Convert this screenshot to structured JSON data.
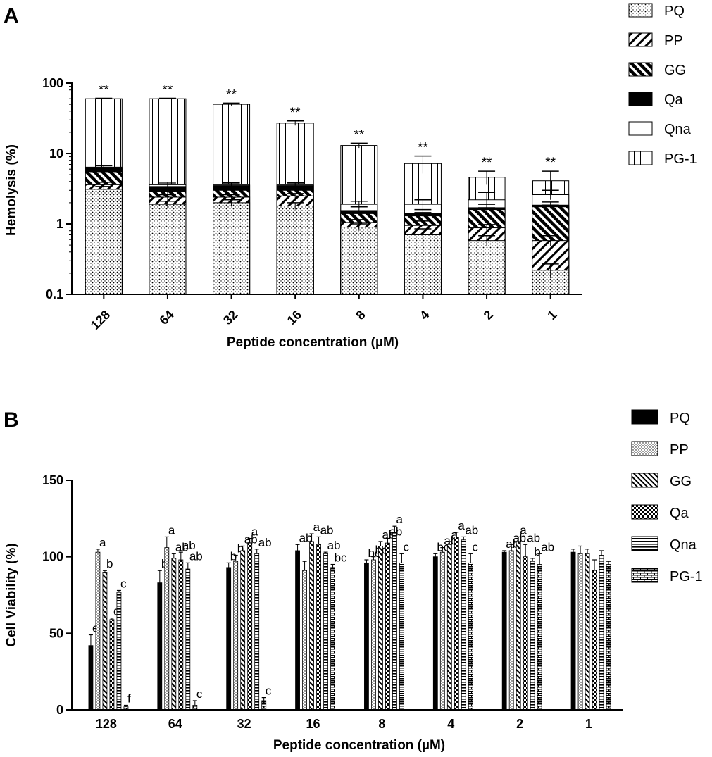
{
  "figure": {
    "panel_a_label": "A",
    "panel_b_label": "B"
  },
  "chart_data": [
    {
      "type": "bar",
      "stacked": true,
      "yscale": "log",
      "panel": "A",
      "title": "",
      "xlabel": "Peptide concentration (µM)",
      "ylabel": "Hemolysis (%)",
      "ylim": [
        0.1,
        100
      ],
      "yticks": [
        "0.1",
        "1",
        "10",
        "100"
      ],
      "categories": [
        "128",
        "64",
        "32",
        "16",
        "8",
        "4",
        "2",
        "1"
      ],
      "series": [
        {
          "name": "PQ",
          "pattern": "dots",
          "values": [
            3.1,
            1.9,
            2.0,
            1.8,
            0.9,
            0.7,
            0.58,
            0.22
          ],
          "errors": [
            0.3,
            0.2,
            0.2,
            0.2,
            0.1,
            0.15,
            0.1,
            0.05
          ]
        },
        {
          "name": "PP",
          "pattern": "diag-left",
          "values": [
            3.6,
            2.4,
            2.4,
            2.5,
            1.05,
            0.95,
            0.88,
            0.58
          ],
          "errors": [
            0.3,
            0.2,
            0.2,
            0.2,
            0.1,
            0.15,
            0.1,
            0.1
          ]
        },
        {
          "name": "GG",
          "pattern": "diag-right",
          "values": [
            5.5,
            2.9,
            3.0,
            3.0,
            1.4,
            1.3,
            1.6,
            1.75
          ],
          "errors": [
            0.3,
            0.2,
            0.2,
            0.2,
            0.1,
            0.15,
            0.1,
            0.1
          ]
        },
        {
          "name": "Qa",
          "pattern": "solid",
          "values": [
            6.3,
            3.4,
            3.5,
            3.5,
            1.55,
            1.4,
            1.7,
            1.85
          ],
          "errors": [
            0.4,
            0.3,
            0.3,
            0.3,
            0.2,
            0.2,
            0.2,
            0.2
          ]
        },
        {
          "name": "Qna",
          "pattern": "empty",
          "values": [
            6.4,
            3.6,
            3.6,
            3.6,
            1.9,
            1.9,
            2.2,
            2.6
          ],
          "errors": [
            0.4,
            0.3,
            0.3,
            0.3,
            0.2,
            0.3,
            0.6,
            0.4
          ]
        },
        {
          "name": "PG-1",
          "pattern": "vertical",
          "values": [
            60,
            60,
            50,
            27,
            13,
            7.2,
            4.6,
            4.1
          ],
          "errors": [
            1,
            1,
            2,
            2,
            1,
            2,
            1,
            1.5
          ]
        }
      ],
      "annotations": [
        "**",
        "**",
        "**",
        "**",
        "**",
        "**",
        "**",
        "**"
      ],
      "legend": [
        "PQ",
        "PP",
        "GG",
        "Qa",
        "Qna",
        "PG-1"
      ],
      "legend_position": "top-right"
    },
    {
      "type": "bar",
      "stacked": false,
      "panel": "B",
      "title": "",
      "xlabel": "Peptide concentration (µM)",
      "ylabel": "Cell Viability (%)",
      "ylim": [
        0,
        150
      ],
      "yticks": [
        "0",
        "50",
        "100",
        "150"
      ],
      "categories": [
        "128",
        "64",
        "32",
        "16",
        "8",
        "4",
        "2",
        "1"
      ],
      "series": [
        {
          "name": "PQ",
          "pattern": "solid",
          "values": [
            42,
            83,
            93,
            104,
            96,
            100,
            103,
            103
          ],
          "errors": [
            7,
            8,
            3,
            4,
            2,
            2,
            1,
            2
          ]
        },
        {
          "name": "PP",
          "pattern": "dots",
          "values": [
            103,
            106,
            97,
            91,
            98,
            103,
            104,
            102
          ],
          "errors": [
            2,
            7,
            4,
            6,
            2,
            3,
            4,
            5
          ]
        },
        {
          "name": "GG",
          "pattern": "diag",
          "values": [
            90,
            99,
            104,
            110,
            107,
            108,
            110,
            102
          ],
          "errors": [
            1,
            3,
            3,
            5,
            3,
            2,
            3,
            3
          ]
        },
        {
          "name": "Qa",
          "pattern": "checker",
          "values": [
            59,
            98,
            109,
            108,
            109,
            113,
            100,
            91
          ],
          "errors": [
            1,
            5,
            3,
            5,
            3,
            3,
            8,
            7
          ]
        },
        {
          "name": "Qna",
          "pattern": "horizontal",
          "values": [
            77,
            92,
            102,
            102,
            116,
            111,
            97,
            101
          ],
          "errors": [
            1,
            4,
            3,
            1,
            4,
            2,
            2,
            3
          ]
        },
        {
          "name": "PG-1",
          "pattern": "brick",
          "values": [
            2,
            3,
            6,
            93,
            96,
            96,
            95,
            95
          ],
          "errors": [
            1,
            3,
            2,
            2,
            6,
            6,
            7,
            2
          ]
        }
      ],
      "significance_letters": [
        [
          "e",
          "a",
          "b",
          "d",
          "c",
          "f"
        ],
        [
          "b",
          "a",
          "ab",
          "ab",
          "ab",
          "c"
        ],
        [
          "b",
          "b",
          "ab",
          "a",
          "ab",
          "c"
        ],
        [
          "ab",
          "",
          "a",
          "ab",
          "ab",
          "bc"
        ],
        [
          "bc",
          "bc",
          "ab",
          "ab",
          "a",
          "c"
        ],
        [
          "bc",
          "ab",
          "a",
          "a",
          "ab",
          "c"
        ],
        [
          "ab",
          "ab",
          "a",
          "ab",
          "b",
          "ab"
        ],
        [
          "",
          "",
          "",
          "",
          "",
          ""
        ]
      ],
      "legend": [
        "PQ",
        "PP",
        "GG",
        "Qa",
        "Qna",
        "PG-1"
      ],
      "legend_position": "right"
    }
  ]
}
